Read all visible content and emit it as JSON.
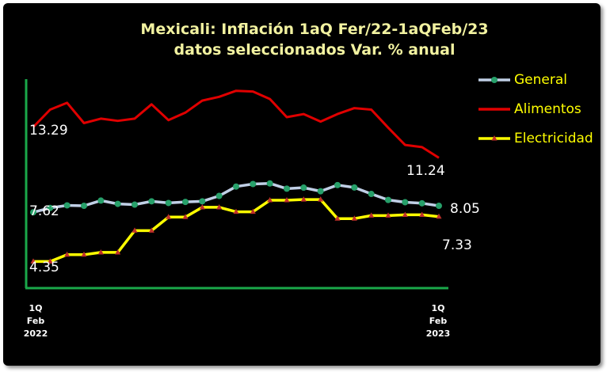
{
  "chart_data": {
    "type": "line",
    "title": "Mexicali: Inflación 1aQ Fer/22-1aQFeb/23",
    "subtitle": "datos seleccionados Var. % anual",
    "title_color": "#f2f2a0",
    "x_start_label": [
      "1Q",
      "Feb",
      "2022"
    ],
    "x_end_label": [
      "1Q",
      "Feb",
      "2023"
    ],
    "ylim": [
      2,
      17
    ],
    "grid": false,
    "legend_position": "right",
    "series": [
      {
        "name": "General",
        "color": "#c0cfe6",
        "marker_color": "#27a06a",
        "marker": "circle",
        "values": [
          7.62,
          7.91,
          8.08,
          8.05,
          8.4,
          8.18,
          8.13,
          8.35,
          8.24,
          8.31,
          8.35,
          8.71,
          9.33,
          9.5,
          9.54,
          9.19,
          9.26,
          9.02,
          9.43,
          9.27,
          8.84,
          8.44,
          8.29,
          8.22,
          8.05
        ]
      },
      {
        "name": "Alimentos",
        "color": "#e00000",
        "marker": "none",
        "values": [
          13.29,
          14.45,
          14.9,
          13.55,
          13.85,
          13.7,
          13.85,
          14.8,
          13.75,
          14.25,
          15.05,
          15.3,
          15.7,
          15.65,
          15.15,
          13.95,
          14.15,
          13.65,
          14.15,
          14.55,
          14.45,
          13.25,
          12.1,
          11.95,
          11.24
        ]
      },
      {
        "name": "Electricidad",
        "color": "#ffff00",
        "marker_color": "#c0302a",
        "marker": "triangle",
        "values": [
          4.35,
          4.35,
          4.8,
          4.8,
          4.95,
          4.95,
          6.4,
          6.4,
          7.3,
          7.3,
          7.95,
          7.95,
          7.65,
          7.65,
          8.42,
          8.42,
          8.47,
          8.47,
          7.2,
          7.2,
          7.4,
          7.4,
          7.45,
          7.45,
          7.33
        ]
      }
    ],
    "data_labels": {
      "general_start": "7.62",
      "general_end": "8.05",
      "alimentos_start": "13.29",
      "alimentos_end": "11.24",
      "electricidad_start": "4.35",
      "electricidad_end": "7.33"
    }
  }
}
